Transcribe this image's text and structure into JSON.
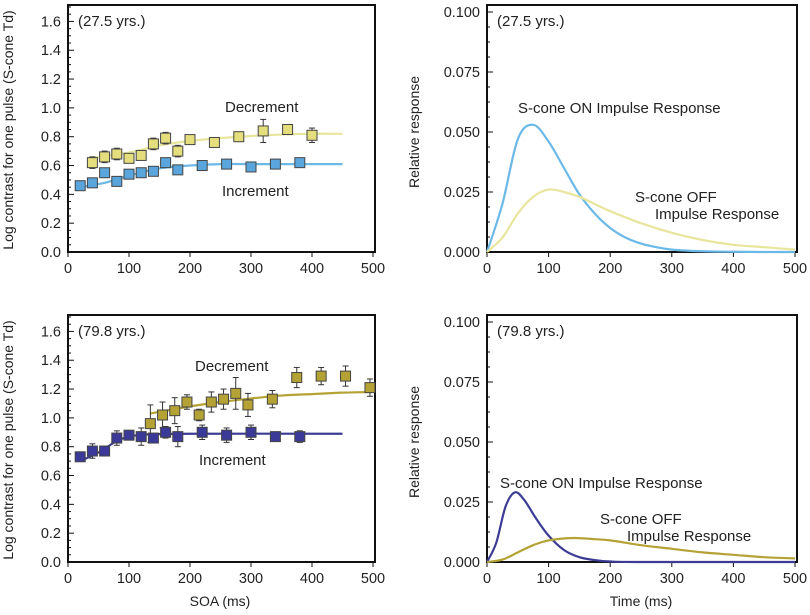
{
  "chart_data": [
    {
      "type": "scatter",
      "panel": "top-left",
      "title": "(27.5 yrs.)",
      "xlabel": "",
      "ylabel": "Log contrast for one pulse (S-cone Td)",
      "xlim": [
        0,
        500
      ],
      "ylim": [
        0,
        1.7
      ],
      "xticks": [
        0,
        100,
        200,
        300,
        400,
        500
      ],
      "yticks": [
        0.0,
        0.2,
        0.4,
        0.6,
        0.8,
        1.0,
        1.2,
        1.4,
        1.6
      ],
      "ytick_decimals": 1,
      "annotations": [
        "Decrement",
        "Increment"
      ],
      "series": [
        {
          "name": "Decrement",
          "color": "#e4df7c",
          "line_color": "#e8e69c",
          "x": [
            40,
            60,
            80,
            100,
            120,
            140,
            160,
            180,
            200,
            240,
            280,
            320,
            360,
            400
          ],
          "y": [
            0.62,
            0.66,
            0.68,
            0.65,
            0.67,
            0.75,
            0.79,
            0.7,
            0.78,
            0.76,
            0.8,
            0.84,
            0.85,
            0.81
          ],
          "err": [
            0.04,
            0.04,
            0.04,
            0.03,
            0.03,
            0.04,
            0.04,
            0.04,
            0.02,
            0.03,
            0.02,
            0.08,
            0.02,
            0.05
          ],
          "fit_x": [
            35,
            100,
            150,
            200,
            250,
            300,
            350,
            400,
            450
          ],
          "fit_y": [
            0.65,
            0.69,
            0.74,
            0.77,
            0.79,
            0.805,
            0.815,
            0.82,
            0.82
          ]
        },
        {
          "name": "Increment",
          "color": "#5aa6dc",
          "line_color": "#6cb9e8",
          "x": [
            20,
            40,
            60,
            80,
            100,
            120,
            140,
            160,
            180,
            220,
            260,
            300,
            340,
            380
          ],
          "y": [
            0.46,
            0.48,
            0.55,
            0.49,
            0.54,
            0.55,
            0.56,
            0.62,
            0.57,
            0.6,
            0.61,
            0.59,
            0.61,
            0.62
          ],
          "err": [
            0.01,
            0.02,
            0.03,
            0.01,
            0.02,
            0.02,
            0.02,
            0.02,
            0.01,
            0.01,
            0.02,
            0.02,
            0.01,
            0.01
          ],
          "fit_x": [
            20,
            60,
            100,
            150,
            200,
            250,
            300,
            450
          ],
          "fit_y": [
            0.45,
            0.48,
            0.53,
            0.58,
            0.6,
            0.61,
            0.61,
            0.61
          ]
        }
      ]
    },
    {
      "type": "scatter",
      "panel": "bottom-left",
      "title": "(79.8 yrs.)",
      "xlabel": "SOA (ms)",
      "ylabel": "Log contrast for one pulse (S-cone Td)",
      "xlim": [
        0,
        500
      ],
      "ylim": [
        0,
        1.7
      ],
      "xticks": [
        0,
        100,
        200,
        300,
        400,
        500
      ],
      "yticks": [
        0.0,
        0.2,
        0.4,
        0.6,
        0.8,
        1.0,
        1.2,
        1.4,
        1.6
      ],
      "ytick_decimals": 1,
      "annotations": [
        "Decrement",
        "Increment"
      ],
      "series": [
        {
          "name": "Decrement",
          "color": "#b4a235",
          "line_color": "#b4a235",
          "x": [
            135,
            155,
            175,
            195,
            215,
            235,
            255,
            275,
            295,
            335,
            375,
            415,
            455,
            495
          ],
          "y": [
            0.96,
            1.02,
            1.05,
            1.11,
            1.02,
            1.11,
            1.13,
            1.17,
            1.09,
            1.13,
            1.28,
            1.29,
            1.29,
            1.21
          ],
          "err": [
            0.13,
            0.09,
            0.09,
            0.05,
            0.04,
            0.07,
            0.07,
            0.11,
            0.08,
            0.06,
            0.07,
            0.06,
            0.07,
            0.06
          ],
          "fit_x": [
            135,
            200,
            250,
            300,
            350,
            400,
            450,
            500
          ],
          "fit_y": [
            1.03,
            1.08,
            1.11,
            1.135,
            1.155,
            1.165,
            1.175,
            1.18
          ]
        },
        {
          "name": "Increment",
          "color": "#3b3a98",
          "line_color": "#3d3c94",
          "x": [
            20,
            40,
            60,
            80,
            100,
            120,
            140,
            160,
            180,
            220,
            260,
            300,
            340,
            380
          ],
          "y": [
            0.73,
            0.77,
            0.77,
            0.86,
            0.88,
            0.87,
            0.86,
            0.9,
            0.87,
            0.9,
            0.88,
            0.9,
            0.87,
            0.87
          ],
          "err": [
            0.02,
            0.05,
            0.03,
            0.05,
            0.03,
            0.06,
            0.02,
            0.04,
            0.07,
            0.05,
            0.05,
            0.05,
            0.02,
            0.04
          ],
          "fit_x": [
            20,
            50,
            80,
            100,
            130,
            200,
            450
          ],
          "fit_y": [
            0.7,
            0.76,
            0.84,
            0.87,
            0.885,
            0.89,
            0.89
          ]
        }
      ]
    },
    {
      "type": "line",
      "panel": "top-right",
      "title": "(27.5 yrs.)",
      "xlabel": "",
      "ylabel": "Relative response",
      "xlim": [
        0,
        500
      ],
      "ylim": [
        0,
        0.1
      ],
      "xticks": [
        0,
        100,
        200,
        300,
        400,
        500
      ],
      "yticks": [
        0.0,
        0.025,
        0.05,
        0.075,
        0.1
      ],
      "ytick_decimals": 3,
      "annotations": [
        "S-cone ON Impulse Response",
        "S-cone OFF",
        "Impulse Response"
      ],
      "series": [
        {
          "name": "S-cone ON Impulse Response",
          "line_color": "#6cb9e8",
          "x": [
            0,
            25,
            50,
            75,
            100,
            125,
            150,
            175,
            200,
            225,
            250,
            275,
            300,
            350,
            400,
            450,
            500
          ],
          "y": [
            0,
            0.02,
            0.047,
            0.053,
            0.046,
            0.035,
            0.024,
            0.016,
            0.01,
            0.006,
            0.0035,
            0.002,
            0.001,
            0.0003,
            0.0001,
            0,
            0
          ]
        },
        {
          "name": "S-cone OFF Impulse Response",
          "line_color": "#e8e69c",
          "x": [
            0,
            25,
            50,
            75,
            100,
            125,
            150,
            175,
            200,
            250,
            300,
            350,
            400,
            450,
            500
          ],
          "y": [
            0,
            0.006,
            0.016,
            0.023,
            0.026,
            0.025,
            0.023,
            0.02,
            0.017,
            0.012,
            0.008,
            0.005,
            0.003,
            0.002,
            0.001
          ]
        }
      ]
    },
    {
      "type": "line",
      "panel": "bottom-right",
      "title": "(79.8 yrs.)",
      "xlabel": "Time (ms)",
      "ylabel": "Relative response",
      "xlim": [
        0,
        500
      ],
      "ylim": [
        0,
        0.1
      ],
      "xticks": [
        0,
        100,
        200,
        300,
        400,
        500
      ],
      "yticks": [
        0.0,
        0.025,
        0.05,
        0.075,
        0.1
      ],
      "ytick_decimals": 3,
      "annotations": [
        "S-cone ON Impulse Response",
        "S-cone OFF",
        "Impulse Response"
      ],
      "series": [
        {
          "name": "S-cone ON Impulse Response",
          "line_color": "#3d3c94",
          "x": [
            0,
            15,
            30,
            45,
            60,
            80,
            100,
            125,
            150,
            175,
            200,
            250,
            500
          ],
          "y": [
            0,
            0.008,
            0.023,
            0.029,
            0.026,
            0.018,
            0.011,
            0.005,
            0.002,
            0.0008,
            0.0002,
            0,
            0
          ]
        },
        {
          "name": "S-cone OFF Impulse Response",
          "line_color": "#b4a235",
          "x": [
            0,
            25,
            50,
            75,
            100,
            140,
            175,
            200,
            250,
            300,
            350,
            400,
            450,
            500
          ],
          "y": [
            0,
            0.001,
            0.004,
            0.007,
            0.009,
            0.01,
            0.0095,
            0.009,
            0.007,
            0.0055,
            0.004,
            0.003,
            0.002,
            0.0015
          ]
        }
      ]
    }
  ]
}
